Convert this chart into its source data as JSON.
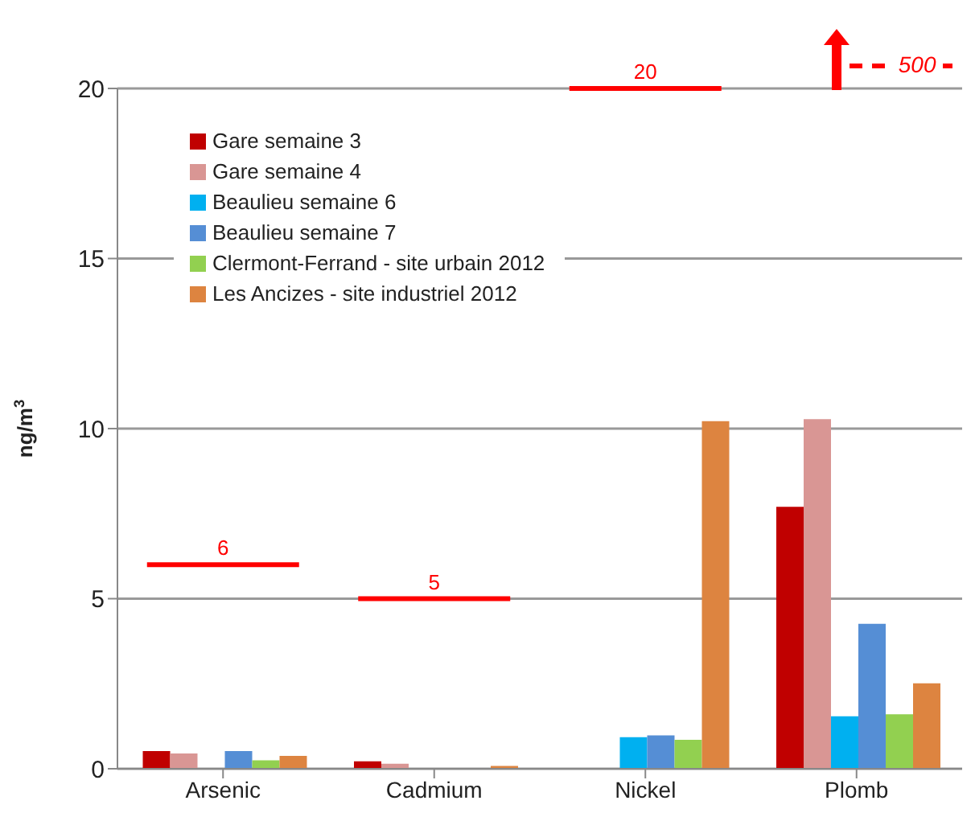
{
  "chart_data": {
    "type": "bar",
    "ylabel": "ng/m$^{3}$",
    "categories": [
      "Arsenic",
      "Cadmium",
      "Nickel",
      "Plomb"
    ],
    "series": [
      {
        "name": "Gare semaine 3",
        "color": "#c00000",
        "values": [
          0.52,
          0.22,
          null,
          7.7
        ]
      },
      {
        "name": "Gare semaine 4",
        "color": "#d99694",
        "values": [
          0.45,
          0.15,
          null,
          10.28
        ]
      },
      {
        "name": "Beaulieu semaine 6",
        "color": "#00b0f0",
        "values": [
          null,
          null,
          0.93,
          1.54
        ]
      },
      {
        "name": "Beaulieu semaine 7",
        "color": "#558ed5",
        "values": [
          0.52,
          null,
          0.98,
          4.26
        ]
      },
      {
        "name": "Clermont-Ferrand - site urbain 2012",
        "color": "#92d050",
        "values": [
          0.25,
          null,
          0.85,
          1.6
        ]
      },
      {
        "name": "Les Ancizes - site industriel 2012",
        "color": "#dd8440",
        "values": [
          0.38,
          0.08,
          10.22,
          2.51
        ]
      }
    ],
    "ylim": [
      0,
      20
    ],
    "yticks": [
      0,
      5,
      10,
      15,
      20
    ],
    "grid": "y",
    "legend": "top left",
    "ref_lines": [
      {
        "axis": "y",
        "value": 6,
        "label": "6",
        "color": "#ff0000"
      },
      {
        "axis": "y",
        "value": 5,
        "label": "5",
        "color": "#ff0000"
      },
      {
        "axis": "y",
        "value": 20,
        "label": "20",
        "color": "#ff0000"
      }
    ],
    "annotations": [
      "500"
    ]
  }
}
